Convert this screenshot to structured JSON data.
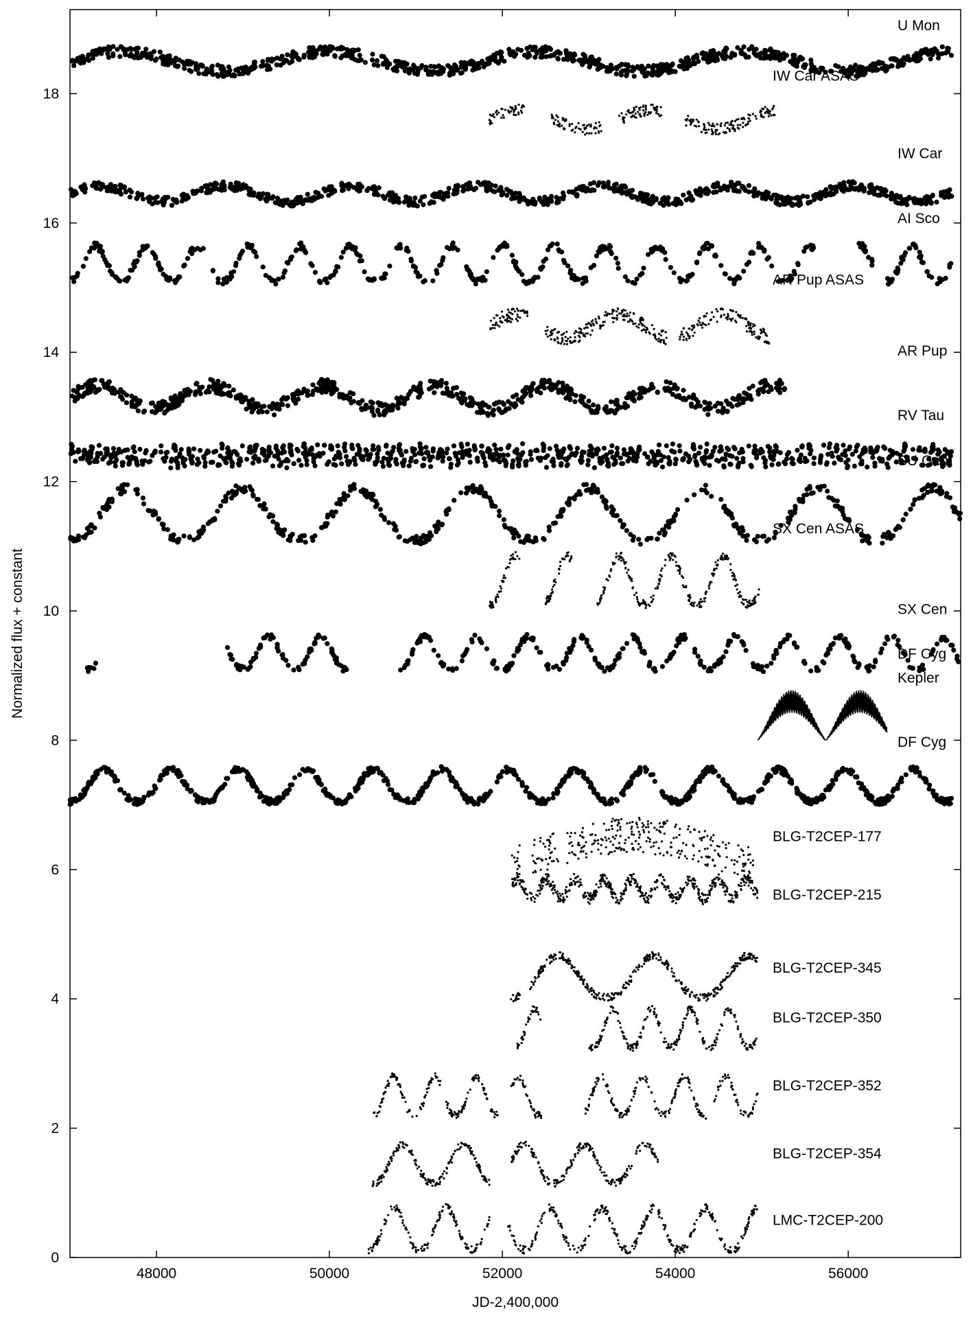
{
  "chart_data": {
    "type": "scatter",
    "title": "",
    "xlabel": "JD-2,400,000",
    "ylabel": "Normalized flux + constant",
    "xlim": [
      47000,
      57300
    ],
    "ylim": [
      0,
      19.3
    ],
    "xticks": [
      48000,
      50000,
      52000,
      54000,
      56000
    ],
    "yticks": [
      0,
      2,
      4,
      6,
      8,
      10,
      12,
      14,
      16,
      18
    ],
    "grid": false,
    "series": [
      {
        "name": "U Mon",
        "labels": [
          "U Mon"
        ],
        "base": 18.5,
        "amp": 0.25,
        "start": 47000,
        "end": 57200,
        "period": 2400,
        "kind": "wave",
        "marker": "large",
        "count": 900
      },
      {
        "name": "IW Car ASAS",
        "labels": [
          "IW Car ASAS"
        ],
        "base": 17.6,
        "amp": 0.25,
        "start": 51850,
        "end": 55150,
        "period": 1500,
        "kind": "wave",
        "marker": "small",
        "count": 380,
        "gaps": [
          [
            52250,
            52550
          ],
          [
            53150,
            53350
          ],
          [
            53850,
            54100
          ]
        ]
      },
      {
        "name": "IW Car",
        "labels": [
          "IW Car"
        ],
        "base": 16.45,
        "amp": 0.2,
        "start": 47000,
        "end": 57200,
        "period": 1450,
        "kind": "wave",
        "marker": "large",
        "count": 850
      },
      {
        "name": "AI Sco",
        "labels": [
          "AI Sco"
        ],
        "base": 15.1,
        "amp": 0.55,
        "start": 47000,
        "end": 57200,
        "period": 590,
        "kind": "peaks",
        "marker": "large",
        "count": 520,
        "gaps": [
          [
            55600,
            56100
          ]
        ]
      },
      {
        "name": "AR Pup ASAS",
        "labels": [
          "AR Pup ASAS"
        ],
        "base": 14.4,
        "amp": 0.3,
        "start": 51850,
        "end": 55100,
        "period": 1200,
        "kind": "wave",
        "marker": "small",
        "count": 420,
        "gaps": [
          [
            52300,
            52500
          ],
          [
            53900,
            54050
          ]
        ]
      },
      {
        "name": "AR Pup",
        "labels": [
          "AR Pup"
        ],
        "base": 13.3,
        "amp": 0.3,
        "start": 47000,
        "end": 55300,
        "period": 1300,
        "kind": "wave",
        "marker": "large",
        "count": 720,
        "gaps": [
          [
            53800,
            53850
          ],
          [
            54900,
            54950
          ]
        ]
      },
      {
        "name": "RV Tau",
        "labels": [
          "RV Tau"
        ],
        "base": 12.4,
        "amp": 0.2,
        "start": 47000,
        "end": 57200,
        "period": 79,
        "kind": "wave",
        "marker": "large",
        "count": 950
      },
      {
        "name": "SU Gem",
        "labels": [
          "SU Gem"
        ],
        "base": 11.1,
        "amp": 0.8,
        "start": 47000,
        "end": 57300,
        "period": 1330,
        "kind": "peaks",
        "marker": "large",
        "count": 560
      },
      {
        "name": "SX Cen ASAS",
        "labels": [
          "SX Cen ASAS"
        ],
        "base": 10.1,
        "amp": 0.75,
        "start": 51850,
        "end": 55000,
        "period": 600,
        "kind": "peaks",
        "marker": "small",
        "count": 420,
        "gaps": [
          [
            52200,
            52500
          ],
          [
            52800,
            53100
          ]
        ]
      },
      {
        "name": "SX Cen",
        "labels": [
          "SX Cen"
        ],
        "base": 9.1,
        "amp": 0.5,
        "start": 47200,
        "end": 57300,
        "period": 600,
        "kind": "peaks",
        "marker": "large",
        "count": 560,
        "gaps": [
          [
            47300,
            48800
          ],
          [
            49000,
            49000
          ],
          [
            50200,
            50800
          ]
        ]
      },
      {
        "name": "DF Cyg Kepler",
        "labels": [
          "DF Cyg",
          "Kepler"
        ],
        "base": 8.1,
        "amp": 0.6,
        "start": 54950,
        "end": 56450,
        "period": 790,
        "kind": "kepler",
        "marker": "line",
        "count": 700
      },
      {
        "name": "DF Cyg",
        "labels": [
          "DF Cyg"
        ],
        "base": 7.05,
        "amp": 0.5,
        "start": 47000,
        "end": 57200,
        "period": 780,
        "kind": "peaks",
        "marker": "large",
        "count": 900
      },
      {
        "name": "BLG-T2CEP-177",
        "labels": [
          "BLG-T2CEP-177"
        ],
        "base": 6.05,
        "amp": 0.8,
        "start": 52100,
        "end": 54900,
        "period": 5600,
        "kind": "wave",
        "marker": "small",
        "count": 340,
        "gaps": [
          [
            52200,
            52350
          ],
          [
            52650,
            52750
          ]
        ]
      },
      {
        "name": "BLG-T2CEP-215",
        "labels": [
          "BLG-T2CEP-215"
        ],
        "base": 5.7,
        "amp": 0.25,
        "start": 52100,
        "end": 54950,
        "period": 330,
        "kind": "wave",
        "marker": "small",
        "count": 520
      },
      {
        "name": "BLG-T2CEP-345",
        "labels": [
          "BLG-T2CEP-345"
        ],
        "base": 4.02,
        "amp": 0.65,
        "start": 52100,
        "end": 54950,
        "period": 1100,
        "kind": "peaks",
        "marker": "small",
        "count": 400,
        "gaps": [
          [
            52200,
            52300
          ]
        ]
      },
      {
        "name": "BLG-T2CEP-350",
        "labels": [
          "BLG-T2CEP-350"
        ],
        "base": 3.25,
        "amp": 0.6,
        "start": 52150,
        "end": 54950,
        "period": 450,
        "kind": "peaks",
        "marker": "small",
        "count": 360,
        "gaps": [
          [
            52450,
            53000
          ]
        ]
      },
      {
        "name": "BLG-T2CEP-352",
        "labels": [
          "BLG-T2CEP-352"
        ],
        "base": 2.2,
        "amp": 0.6,
        "start": 50500,
        "end": 54950,
        "period": 480,
        "kind": "peaks",
        "marker": "small",
        "count": 480,
        "gaps": [
          [
            51950,
            52100
          ],
          [
            52450,
            52950
          ]
        ]
      },
      {
        "name": "BLG-T2CEP-354",
        "labels": [
          "BLG-T2CEP-354"
        ],
        "base": 1.15,
        "amp": 0.6,
        "start": 50500,
        "end": 53800,
        "period": 700,
        "kind": "peaks",
        "marker": "small",
        "count": 420,
        "gaps": [
          [
            51850,
            52100
          ]
        ]
      },
      {
        "name": "LMC-T2CEP-200",
        "labels": [
          "LMC-T2CEP-200"
        ],
        "base": 0.12,
        "amp": 0.65,
        "start": 50450,
        "end": 54950,
        "period": 600,
        "kind": "peaks",
        "marker": "small",
        "count": 520,
        "gaps": [
          [
            51850,
            52050
          ],
          [
            53750,
            53800
          ]
        ]
      }
    ]
  }
}
